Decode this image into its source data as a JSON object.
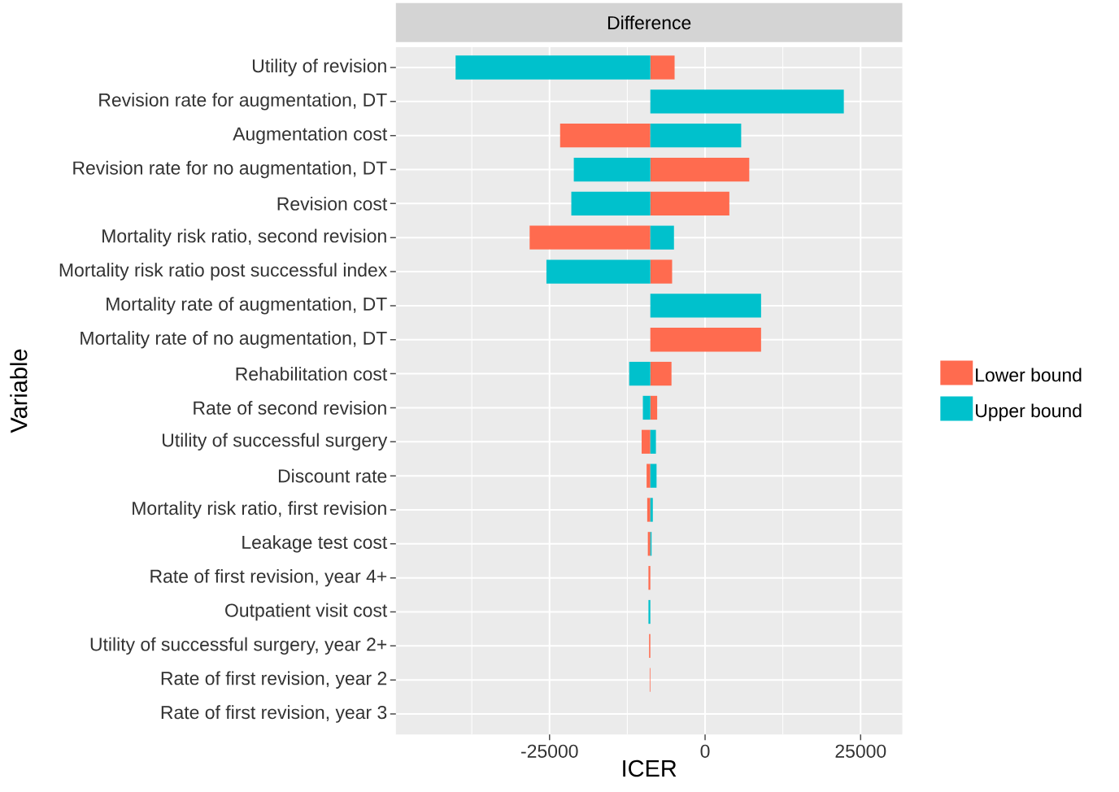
{
  "chart_data": {
    "type": "bar",
    "orientation": "horizontal",
    "title": "Difference",
    "xlabel": "ICER",
    "ylabel": "Variable",
    "categories": [
      "Utility of revision",
      "Revision rate for augmentation, DT",
      "Augmentation cost",
      "Revision rate for no augmentation, DT",
      "Revision cost",
      "Mortality risk ratio, second revision",
      "Mortality risk ratio post successful index",
      "Mortality rate of augmentation, DT",
      "Mortality rate of no augmentation, DT",
      "Rehabilitation cost",
      "Rate of second revision",
      "Utility of successful surgery",
      "Discount rate",
      "Mortality risk ratio, first revision",
      "Leakage test cost",
      "Rate of first revision, year 4+",
      "Outpatient visit cost",
      "Utility of successful surgery, year 2+",
      "Rate of first revision, year 2",
      "Rate of first revision, year 3"
    ],
    "series": [
      {
        "name": "Lower bound",
        "color": "#ff6b4f",
        "base": [
          -8800,
          null,
          -8800,
          -8800,
          -8800,
          -8800,
          -8800,
          null,
          -8800,
          -8800,
          -8800,
          -8800,
          -8800,
          -8800,
          -8800,
          -8800,
          null,
          -8800,
          -8800,
          null
        ],
        "values": [
          3900,
          null,
          -14500,
          15900,
          12700,
          -19400,
          3500,
          null,
          17800,
          3400,
          1100,
          -1400,
          -600,
          -500,
          -400,
          -300,
          null,
          -200,
          -100,
          null
        ]
      },
      {
        "name": "Upper bound",
        "color": "#00c1cc",
        "base": [
          -8800,
          -8800,
          -8800,
          -8800,
          -8800,
          -8800,
          -8800,
          -8800,
          null,
          -8800,
          -8800,
          -8800,
          -8800,
          -8800,
          -8800,
          null,
          -8800,
          null,
          null,
          null
        ],
        "values": [
          -31300,
          31100,
          14600,
          -12300,
          -12700,
          3800,
          -16700,
          17800,
          null,
          -3400,
          -1200,
          900,
          1000,
          400,
          200,
          null,
          -300,
          null,
          null,
          null
        ]
      }
    ],
    "xlim": [
      -49700,
      31700
    ],
    "xticks": [
      -25000,
      0,
      25000
    ],
    "grid": true,
    "legend": "right"
  }
}
